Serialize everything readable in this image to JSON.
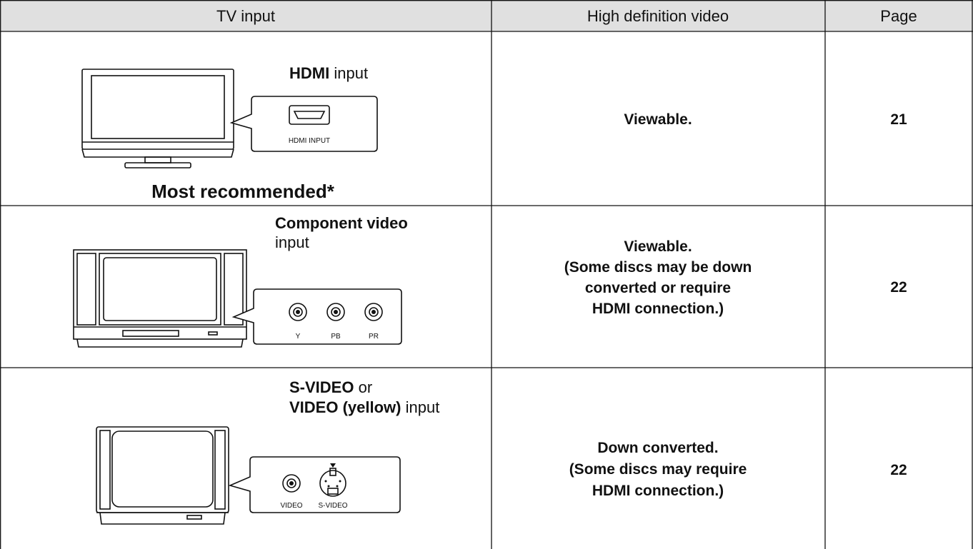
{
  "table": {
    "header": [
      "TV input",
      "High definition video",
      "Page"
    ],
    "rows": [
      {
        "input": {
          "lines": [
            {
              "bold": "HDMI",
              "normal": "input"
            }
          ],
          "ports": [
            "HDMI INPUT"
          ],
          "note": "Most recommended*"
        },
        "hd_video": [
          "Viewable."
        ],
        "page": "21"
      },
      {
        "input": {
          "lines": [
            {
              "bold": "Component video"
            },
            {
              "normal": "input"
            }
          ],
          "ports": [
            "Y",
            "PB",
            "PR"
          ]
        },
        "hd_video": [
          "Viewable.",
          "(Some discs may be down",
          "converted or require",
          "HDMI connection.)"
        ],
        "page": "22"
      },
      {
        "input": {
          "lines": [
            {
              "bold": "S-VIDEO",
              "normal": "or"
            },
            {
              "bold": "VIDEO (yellow)",
              "normal": "input"
            }
          ],
          "ports": [
            "VIDEO",
            "S-VIDEO"
          ]
        },
        "hd_video": [
          "Down converted.",
          "(Some discs may require",
          "HDMI connection.)"
        ],
        "page": "22"
      }
    ]
  }
}
